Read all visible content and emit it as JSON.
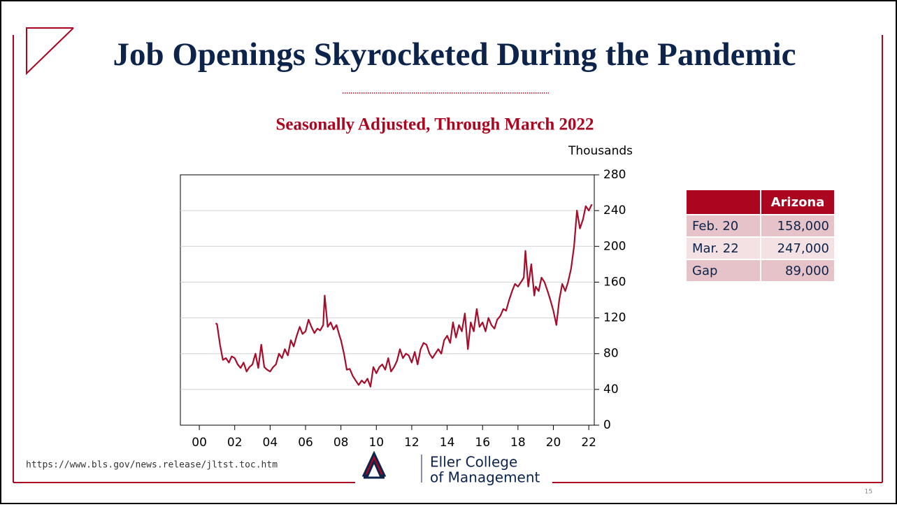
{
  "title": "Job Openings Skyrocketed During the Pandemic",
  "chart_data": {
    "type": "line",
    "title": "Seasonally Adjusted, Through March 2022",
    "y_unit": "Thousands",
    "color": "#a50d2b",
    "grid": true,
    "xlim": [
      1998.93,
      2022.31
    ],
    "xticks": [
      {
        "value": 2000,
        "label": "00"
      },
      {
        "value": 2002,
        "label": "02"
      },
      {
        "value": 2004,
        "label": "04"
      },
      {
        "value": 2006,
        "label": "06"
      },
      {
        "value": 2008,
        "label": "08"
      },
      {
        "value": 2010,
        "label": "10"
      },
      {
        "value": 2012,
        "label": "12"
      },
      {
        "value": 2014,
        "label": "14"
      },
      {
        "value": 2016,
        "label": "16"
      },
      {
        "value": 2018,
        "label": "18"
      },
      {
        "value": 2020,
        "label": "20"
      },
      {
        "value": 2022,
        "label": "22"
      }
    ],
    "ylim": [
      0,
      280
    ],
    "yticks": [
      0,
      40,
      80,
      120,
      160,
      200,
      240,
      280
    ],
    "x": [
      2000.92,
      2001.0,
      2001.17,
      2001.33,
      2001.5,
      2001.67,
      2001.83,
      2002.0,
      2002.17,
      2002.33,
      2002.5,
      2002.67,
      2002.83,
      2003.0,
      2003.17,
      2003.33,
      2003.5,
      2003.67,
      2003.83,
      2004.0,
      2004.17,
      2004.33,
      2004.5,
      2004.67,
      2004.83,
      2005.0,
      2005.17,
      2005.33,
      2005.5,
      2005.67,
      2005.83,
      2006.0,
      2006.17,
      2006.33,
      2006.5,
      2006.67,
      2006.83,
      2007.0,
      2007.08,
      2007.25,
      2007.42,
      2007.58,
      2007.75,
      2007.92,
      2008.0,
      2008.17,
      2008.33,
      2008.5,
      2008.67,
      2008.83,
      2009.0,
      2009.17,
      2009.33,
      2009.5,
      2009.67,
      2009.83,
      2010.0,
      2010.17,
      2010.33,
      2010.5,
      2010.67,
      2010.83,
      2011.0,
      2011.17,
      2011.33,
      2011.5,
      2011.67,
      2011.83,
      2012.0,
      2012.17,
      2012.33,
      2012.5,
      2012.67,
      2012.83,
      2013.0,
      2013.17,
      2013.33,
      2013.5,
      2013.67,
      2013.83,
      2014.0,
      2014.17,
      2014.33,
      2014.5,
      2014.67,
      2014.83,
      2015.0,
      2015.17,
      2015.33,
      2015.5,
      2015.67,
      2015.83,
      2016.0,
      2016.17,
      2016.33,
      2016.5,
      2016.67,
      2016.83,
      2017.0,
      2017.17,
      2017.33,
      2017.5,
      2017.67,
      2017.83,
      2018.0,
      2018.17,
      2018.33,
      2018.42,
      2018.58,
      2018.75,
      2018.92,
      2019.0,
      2019.17,
      2019.33,
      2019.5,
      2019.67,
      2019.83,
      2020.0,
      2020.17,
      2020.33,
      2020.5,
      2020.67,
      2020.83,
      2021.0,
      2021.17,
      2021.33,
      2021.5,
      2021.67,
      2021.83,
      2022.0,
      2022.17
    ],
    "values": [
      114,
      113,
      90,
      73,
      75,
      70,
      77,
      75,
      68,
      64,
      70,
      60,
      65,
      68,
      80,
      64,
      90,
      65,
      62,
      60,
      65,
      68,
      80,
      75,
      85,
      78,
      95,
      88,
      100,
      110,
      102,
      105,
      118,
      110,
      103,
      108,
      106,
      112,
      145,
      110,
      115,
      107,
      112,
      100,
      95,
      80,
      62,
      63,
      55,
      50,
      45,
      50,
      47,
      52,
      43,
      65,
      58,
      65,
      68,
      62,
      75,
      60,
      65,
      72,
      85,
      75,
      80,
      78,
      70,
      82,
      68,
      85,
      92,
      90,
      80,
      75,
      80,
      85,
      80,
      95,
      100,
      92,
      115,
      98,
      112,
      105,
      125,
      85,
      115,
      105,
      130,
      110,
      115,
      105,
      120,
      112,
      108,
      118,
      122,
      130,
      128,
      140,
      150,
      158,
      155,
      160,
      165,
      195,
      155,
      180,
      145,
      155,
      150,
      165,
      160,
      150,
      140,
      128,
      112,
      140,
      158,
      150,
      160,
      175,
      200,
      240,
      220,
      230,
      245,
      240,
      247
    ]
  },
  "table": {
    "header": [
      "",
      "Arizona"
    ],
    "rows": [
      [
        "Feb. 20",
        "158,000"
      ],
      [
        "Mar. 22",
        "247,000"
      ],
      [
        "Gap",
        "89,000"
      ]
    ]
  },
  "source": "https://www.bls.gov/news.release/jltst.toc.htm",
  "logo": [
    "Eller College",
    "of Management"
  ],
  "page_number": "15"
}
